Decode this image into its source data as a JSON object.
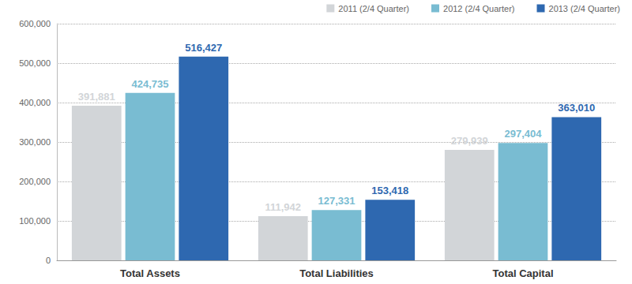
{
  "chart_data": {
    "type": "bar",
    "categories": [
      "Total Assets",
      "Total Liabilities",
      "Total Capital"
    ],
    "series": [
      {
        "name": "2011 (2/4 Quarter)",
        "color": "#d2d5d8",
        "values": [
          391881,
          111942,
          279939
        ],
        "value_labels": [
          "391,881",
          "111,942",
          "279,939"
        ]
      },
      {
        "name": "2012 (2/4 Quarter)",
        "color": "#79bcd2",
        "values": [
          424735,
          127331,
          297404
        ],
        "value_labels": [
          "424,735",
          "127,331",
          "297,404"
        ]
      },
      {
        "name": "2013 (2/4 Quarter)",
        "color": "#2e68b0",
        "values": [
          516427,
          153418,
          363010
        ],
        "value_labels": [
          "516,427",
          "153,418",
          "363,010"
        ]
      }
    ],
    "ylim": [
      0,
      600000
    ],
    "yticks": [
      0,
      {
        "value": 100000,
        "label": "100,000"
      },
      {
        "value": 200000,
        "label": "200,000"
      },
      {
        "value": 300000,
        "label": "300,000"
      },
      {
        "value": 400000,
        "label": "400,000"
      },
      {
        "value": 500000,
        "label": "500,000"
      },
      {
        "value": 600000,
        "label": "600,000"
      }
    ],
    "grid": true,
    "legend": "upper right",
    "data_labels": true
  }
}
